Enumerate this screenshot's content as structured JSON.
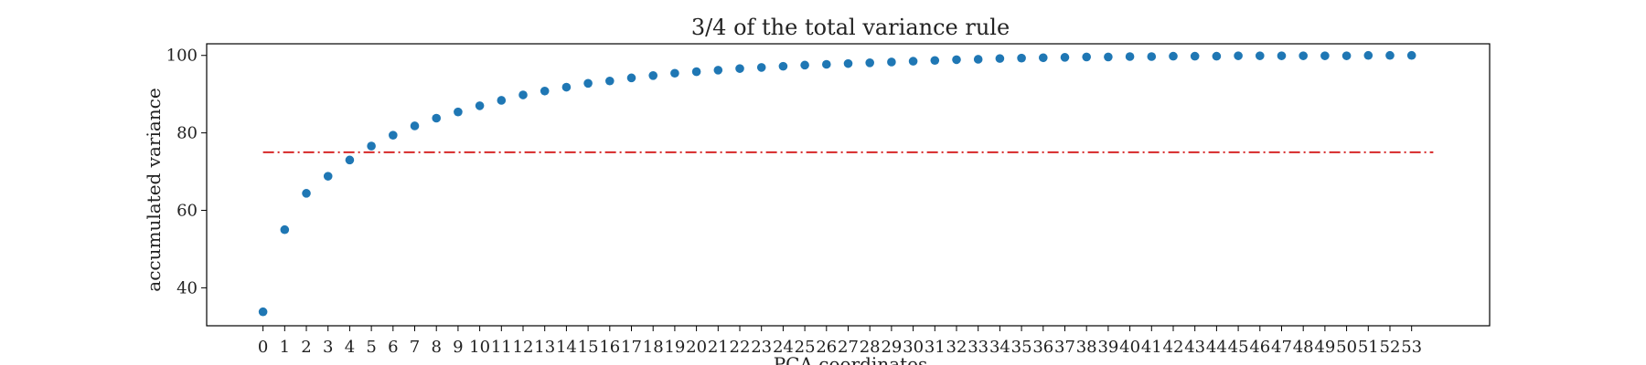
{
  "chart_data": {
    "type": "scatter",
    "title": "3/4 of the total variance rule",
    "xlabel": "PCA coordinates",
    "ylabel": "accumulated variance",
    "x": [
      0,
      1,
      2,
      3,
      4,
      5,
      6,
      7,
      8,
      9,
      10,
      11,
      12,
      13,
      14,
      15,
      16,
      17,
      18,
      19,
      20,
      21,
      22,
      23,
      24,
      25,
      26,
      27,
      28,
      29,
      30,
      31,
      32,
      33,
      34,
      35,
      36,
      37,
      38,
      39,
      40,
      41,
      42,
      43,
      44,
      45,
      46,
      47,
      48,
      49,
      50,
      51,
      52,
      53
    ],
    "y": [
      33.8,
      55.0,
      64.4,
      68.8,
      73.0,
      76.6,
      79.4,
      81.8,
      83.8,
      85.4,
      87.0,
      88.4,
      89.8,
      90.8,
      91.8,
      92.8,
      93.4,
      94.2,
      94.8,
      95.4,
      95.8,
      96.2,
      96.6,
      96.9,
      97.2,
      97.5,
      97.7,
      97.9,
      98.1,
      98.3,
      98.5,
      98.7,
      98.9,
      99.0,
      99.2,
      99.3,
      99.4,
      99.5,
      99.6,
      99.6,
      99.7,
      99.7,
      99.8,
      99.8,
      99.8,
      99.9,
      99.9,
      99.9,
      99.9,
      99.9,
      99.9,
      100.0,
      100.0,
      100.0
    ],
    "threshold": 75,
    "xlim": [
      -2.6,
      56.6
    ],
    "ylim": [
      30.2,
      103.0
    ],
    "yticks": [
      40,
      60,
      80,
      100
    ],
    "grid": false,
    "colors": {
      "points": "#1f77b4",
      "threshold": "#d62728",
      "axes": "#000000",
      "text": "#222222"
    }
  }
}
